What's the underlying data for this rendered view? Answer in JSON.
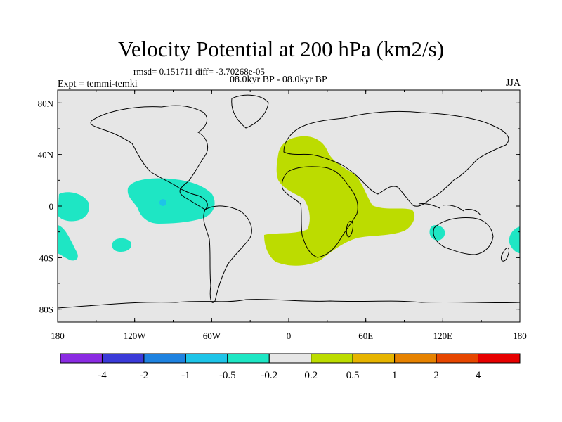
{
  "title": "Velocity Potential at 200 hPa (km2/s)",
  "stats": "rmsd= 0.151711 diff= -3.70268e-05",
  "period": "08.0kyr BP - 08.0kyr BP",
  "experiment": "Expt = temmi-temki",
  "season": "JJA",
  "map": {
    "lat_range": [
      -90,
      90
    ],
    "lon_range": [
      -180,
      180
    ],
    "lat_ticks": [
      "80N",
      "40N",
      "0",
      "40S",
      "80S"
    ],
    "lon_ticks": [
      "180",
      "120W",
      "60W",
      "0",
      "60E",
      "120E",
      "180"
    ],
    "background_color": "#e6e6e6"
  },
  "colorbar": {
    "colors": [
      "#8a2be2",
      "#3a3ad8",
      "#1e82e0",
      "#1ec4e8",
      "#1ee6c4",
      "#e6e6e6",
      "#bcdc00",
      "#e6b400",
      "#e68200",
      "#e64600",
      "#e60000"
    ],
    "labels": [
      "-4",
      "-2",
      "-1",
      "-0.5",
      "-0.2",
      "0.2",
      "0.5",
      "1",
      "2",
      "4"
    ]
  },
  "regions": [
    {
      "name": "atlantic-africa-indian-positive",
      "level": "0.2 to 0.5",
      "color": "#bcdc00"
    },
    {
      "name": "central-america-pacific-negative",
      "level": "-0.5 to -0.2",
      "color": "#1ee6c4"
    },
    {
      "name": "east-pacific-negative",
      "level": "-0.5 to -0.2",
      "color": "#1ee6c4"
    },
    {
      "name": "south-pacific-negative",
      "level": "-0.5 to -0.2",
      "color": "#1ee6c4"
    },
    {
      "name": "australia-west-negative",
      "level": "-0.5 to -0.2",
      "color": "#1ee6c4"
    },
    {
      "name": "east-edge-negative",
      "level": "-0.5 to -0.2",
      "color": "#1ee6c4"
    },
    {
      "name": "core-negative",
      "level": "-1 to -0.5",
      "color": "#1ec4e8"
    }
  ]
}
